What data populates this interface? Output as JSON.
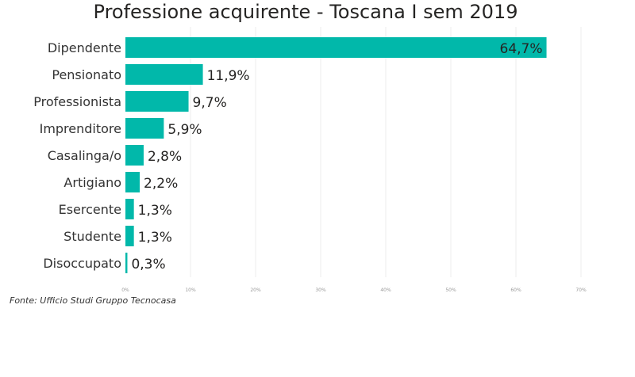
{
  "chart_data": {
    "type": "bar",
    "orientation": "horizontal",
    "title": "Professione acquirente - Toscana I sem 2019",
    "categories": [
      "Dipendente",
      "Pensionato",
      "Professionista",
      "Imprenditore",
      "Casalinga/o",
      "Artigiano",
      "Esercente",
      "Studente",
      "Disoccupato"
    ],
    "values": [
      64.7,
      11.9,
      9.7,
      5.9,
      2.8,
      2.2,
      1.3,
      1.3,
      0.3
    ],
    "data_labels": [
      "64,7%",
      "11,9%",
      "9,7%",
      "5,9%",
      "2,8%",
      "2,2%",
      "1,3%",
      "1,3%",
      "0,3%"
    ],
    "xlim": [
      0,
      70
    ],
    "x_ticks": [
      0,
      10,
      20,
      30,
      40,
      50,
      60,
      70
    ],
    "x_tick_labels": [
      "0%",
      "10%",
      "20%",
      "30%",
      "40%",
      "50%",
      "60%",
      "70%"
    ],
    "grid": true,
    "bar_color": "#01B8AA"
  },
  "footer": {
    "source": "Fonte: Ufficio Studi Gruppo Tecnocasa"
  }
}
